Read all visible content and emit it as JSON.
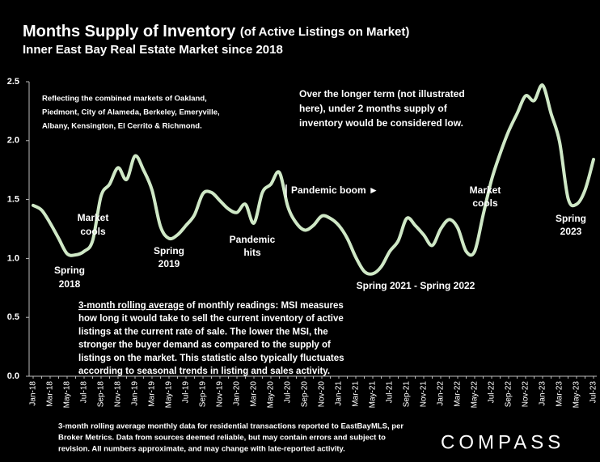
{
  "chart_data": {
    "type": "line",
    "title": "Months Supply of Inventory",
    "title_note": "(of Active Listings on Market)",
    "subtitle": "Inner East Bay Real Estate Market since 2018",
    "categories": [
      "Jan-18",
      null,
      "Mar-18",
      null,
      "May-18",
      null,
      "Jul-18",
      null,
      "Sep-18",
      null,
      "Nov-18",
      null,
      "Jan-19",
      null,
      "Mar-19",
      null,
      "May-19",
      null,
      "Jul-19",
      null,
      "Sep-19",
      null,
      "Nov-19",
      null,
      "Jan-20",
      null,
      "Mar-20",
      null,
      "May-20",
      null,
      "Jul-20",
      null,
      "Sep-20",
      null,
      "Nov-20",
      null,
      "Jan-21",
      null,
      "Mar-21",
      null,
      "May-21",
      null,
      "Jul-21",
      null,
      "Sep-21",
      null,
      "Nov-21",
      null,
      "Jan-22",
      null,
      "Mar-22",
      null,
      "May-22",
      null,
      "Jul-22",
      null,
      "Sep-22",
      null,
      "Nov-22",
      null,
      "Jan-23",
      null,
      "Mar-23",
      null,
      "May-23",
      null,
      "Jul-23"
    ],
    "series": [
      {
        "name": "3-month rolling average MSI",
        "color": "#cfe8c6",
        "values": [
          1.45,
          1.41,
          1.3,
          1.17,
          1.04,
          1.03,
          1.06,
          1.15,
          1.53,
          1.63,
          1.77,
          1.67,
          1.87,
          1.75,
          1.58,
          1.27,
          1.17,
          1.2,
          1.28,
          1.37,
          1.55,
          1.56,
          1.49,
          1.42,
          1.39,
          1.46,
          1.3,
          1.56,
          1.63,
          1.73,
          1.44,
          1.3,
          1.24,
          1.28,
          1.36,
          1.34,
          1.28,
          1.17,
          1.01,
          0.89,
          0.87,
          0.93,
          1.06,
          1.15,
          1.34,
          1.28,
          1.2,
          1.11,
          1.25,
          1.33,
          1.26,
          1.06,
          1.06,
          1.37,
          1.67,
          1.89,
          2.08,
          2.23,
          2.38,
          2.34,
          2.47,
          2.23,
          1.99,
          1.51,
          1.46,
          1.58,
          1.84
        ]
      }
    ],
    "ylim": [
      0,
      2.5
    ],
    "yticks": [
      {
        "value": 0,
        "label": "0.0"
      },
      {
        "value": 0.5,
        "label": "0.5"
      },
      {
        "value": 1,
        "label": "1.0"
      },
      {
        "value": 1.5,
        "label": "1.5"
      },
      {
        "value": 2,
        "label": "2.0"
      },
      {
        "value": 2.5,
        "label": "2.5"
      }
    ],
    "grid": false,
    "annotations": [
      {
        "lines": [
          "Reflecting the combined markets of Oakland,",
          "Piedmont, City of Alameda, Berkeley, Emeryville,",
          "Albany, Kensington, El Cerrito & Richmond."
        ]
      },
      {
        "lines": [
          "Over the longer term (not illustrated",
          "here), under 2 months supply of",
          "inventory would be considered low."
        ]
      },
      {
        "lines": [
          "Market",
          "cools"
        ]
      },
      {
        "lines": [
          "Spring",
          "2018"
        ]
      },
      {
        "lines": [
          "Spring",
          "2019"
        ]
      },
      {
        "lines": [
          "Pandemic",
          "hits"
        ]
      },
      {
        "lines": [
          "Pandemic boom ►"
        ]
      },
      {
        "lines": [
          "Spring 2021 - Spring 2022"
        ]
      },
      {
        "lines": [
          "Market",
          "cools"
        ]
      },
      {
        "lines": [
          "Spring",
          "2023"
        ]
      }
    ],
    "note": {
      "underlined": "3-month rolling average",
      "lines": [
        " of monthly readings: MSI measures",
        "how long it would take to sell the current inventory of active",
        "listings at the current rate of sale. The lower the MSI, the",
        "stronger the buyer demand as compared to the supply of",
        "listings on the market. This statistic also typically fluctuates",
        "according to seasonal trends in listing and sales activity."
      ]
    },
    "footnote": [
      "3-month rolling average monthly data for residential transactions reported to EastBayMLS, per",
      "Broker Metrics. Data from sources deemed reliable, but may contain errors and subject to",
      "revision. All numbers approximate, and may change with late-reported activity."
    ],
    "logo": "COMPASS"
  }
}
